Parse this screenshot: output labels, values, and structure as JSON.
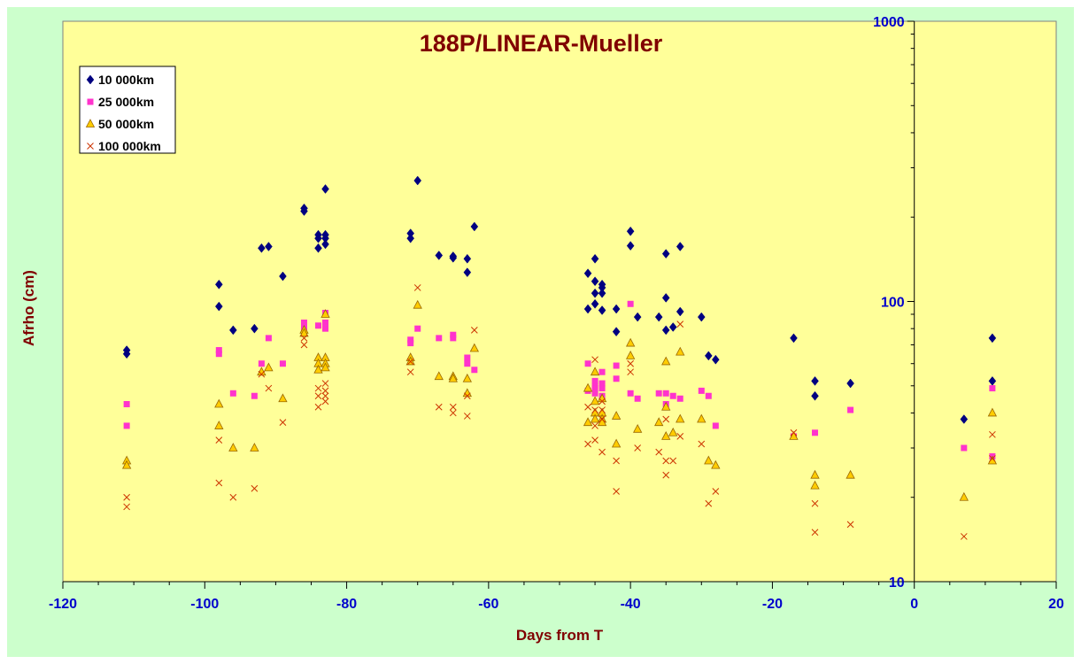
{
  "chart_data": {
    "type": "scatter",
    "title": "188P/LINEAR-Mueller",
    "xlabel": "Days from T",
    "ylabel": "Afrho (cm)",
    "xlim": [
      -120,
      20
    ],
    "ylim": [
      10,
      1000
    ],
    "y_scale": "log",
    "x_ticks": [
      -120,
      -100,
      -80,
      -60,
      -40,
      -20,
      0,
      20
    ],
    "y_ticks": [
      10,
      100,
      1000
    ],
    "legend_position": "top-left",
    "grid": false,
    "colors": {
      "plot_background": "#ffff99",
      "frame_background": "#ccffcc",
      "title": "#800000",
      "tick_labels": "#0000cc"
    },
    "series": [
      {
        "name": "10 000km",
        "marker": "diamond",
        "color": "#000080",
        "points": [
          [
            -111,
            67
          ],
          [
            -111,
            65
          ],
          [
            -98,
            115
          ],
          [
            -98,
            96
          ],
          [
            -96,
            79
          ],
          [
            -93,
            80
          ],
          [
            -92,
            155
          ],
          [
            -91,
            157
          ],
          [
            -89,
            123
          ],
          [
            -86,
            215
          ],
          [
            -86,
            210
          ],
          [
            -84,
            173
          ],
          [
            -84,
            168
          ],
          [
            -84,
            155
          ],
          [
            -83,
            252
          ],
          [
            -83,
            173
          ],
          [
            -83,
            168
          ],
          [
            -83,
            160
          ],
          [
            -71,
            175
          ],
          [
            -71,
            168
          ],
          [
            -70,
            270
          ],
          [
            -67,
            146
          ],
          [
            -65,
            145
          ],
          [
            -65,
            143
          ],
          [
            -63,
            142
          ],
          [
            -63,
            127
          ],
          [
            -62,
            185
          ],
          [
            -46,
            126
          ],
          [
            -46,
            94
          ],
          [
            -45,
            142
          ],
          [
            -45,
            118
          ],
          [
            -45,
            107
          ],
          [
            -45,
            98
          ],
          [
            -44,
            115
          ],
          [
            -44,
            112
          ],
          [
            -44,
            107
          ],
          [
            -44,
            93
          ],
          [
            -42,
            94
          ],
          [
            -42,
            78
          ],
          [
            -40,
            178
          ],
          [
            -40,
            158
          ],
          [
            -39,
            88
          ],
          [
            -36,
            88
          ],
          [
            -35,
            148
          ],
          [
            -35,
            103
          ],
          [
            -35,
            79
          ],
          [
            -34,
            81
          ],
          [
            -33,
            92
          ],
          [
            -33,
            157
          ],
          [
            -30,
            88
          ],
          [
            -29,
            64
          ],
          [
            -28,
            62
          ],
          [
            -17,
            74
          ],
          [
            -14,
            52
          ],
          [
            -14,
            46
          ],
          [
            -9,
            51
          ],
          [
            7,
            38
          ],
          [
            11,
            74
          ],
          [
            11,
            52
          ]
        ]
      },
      {
        "name": "25 000km",
        "marker": "square",
        "color": "#ff33cc",
        "points": [
          [
            -111,
            43
          ],
          [
            -111,
            36
          ],
          [
            -98,
            67
          ],
          [
            -98,
            65
          ],
          [
            -96,
            47
          ],
          [
            -93,
            46
          ],
          [
            -92,
            60
          ],
          [
            -91,
            74
          ],
          [
            -89,
            60
          ],
          [
            -86,
            84
          ],
          [
            -86,
            80
          ],
          [
            -84,
            82
          ],
          [
            -83,
            91
          ],
          [
            -83,
            84
          ],
          [
            -83,
            80
          ],
          [
            -71,
            73
          ],
          [
            -71,
            71
          ],
          [
            -70,
            80
          ],
          [
            -67,
            74
          ],
          [
            -65,
            76
          ],
          [
            -65,
            74
          ],
          [
            -63,
            63
          ],
          [
            -63,
            60
          ],
          [
            -62,
            57
          ],
          [
            -46,
            60
          ],
          [
            -46,
            48
          ],
          [
            -45,
            52
          ],
          [
            -45,
            50
          ],
          [
            -45,
            49
          ],
          [
            -45,
            47
          ],
          [
            -44,
            56
          ],
          [
            -44,
            51
          ],
          [
            -44,
            49
          ],
          [
            -44,
            46
          ],
          [
            -42,
            53
          ],
          [
            -42,
            59
          ],
          [
            -40,
            98
          ],
          [
            -40,
            47
          ],
          [
            -39,
            45
          ],
          [
            -36,
            47
          ],
          [
            -35,
            47
          ],
          [
            -35,
            43
          ],
          [
            -34,
            46
          ],
          [
            -33,
            45
          ],
          [
            -30,
            48
          ],
          [
            -29,
            46
          ],
          [
            -28,
            36
          ],
          [
            -17,
            33
          ],
          [
            -14,
            34
          ],
          [
            -9,
            41
          ],
          [
            7,
            30
          ],
          [
            11,
            49
          ],
          [
            11,
            28
          ]
        ]
      },
      {
        "name": "50 000km",
        "marker": "triangle",
        "color": "#ffcc00",
        "points": [
          [
            -111,
            27
          ],
          [
            -111,
            26
          ],
          [
            -98,
            43
          ],
          [
            -98,
            36
          ],
          [
            -96,
            30
          ],
          [
            -93,
            30
          ],
          [
            -92,
            56
          ],
          [
            -91,
            58
          ],
          [
            -89,
            45
          ],
          [
            -86,
            79
          ],
          [
            -86,
            77
          ],
          [
            -84,
            63
          ],
          [
            -84,
            60
          ],
          [
            -84,
            57
          ],
          [
            -83,
            90
          ],
          [
            -83,
            63
          ],
          [
            -83,
            60
          ],
          [
            -83,
            58
          ],
          [
            -71,
            63
          ],
          [
            -71,
            61
          ],
          [
            -70,
            97
          ],
          [
            -67,
            54
          ],
          [
            -65,
            54
          ],
          [
            -65,
            53
          ],
          [
            -63,
            53
          ],
          [
            -63,
            47
          ],
          [
            -62,
            68
          ],
          [
            -46,
            49
          ],
          [
            -46,
            37
          ],
          [
            -45,
            56
          ],
          [
            -45,
            44
          ],
          [
            -45,
            40
          ],
          [
            -45,
            38
          ],
          [
            -44,
            45
          ],
          [
            -44,
            40
          ],
          [
            -44,
            38
          ],
          [
            -44,
            37
          ],
          [
            -42,
            39
          ],
          [
            -42,
            31
          ],
          [
            -40,
            71
          ],
          [
            -40,
            64
          ],
          [
            -39,
            35
          ],
          [
            -36,
            37
          ],
          [
            -35,
            61
          ],
          [
            -35,
            42
          ],
          [
            -35,
            33
          ],
          [
            -34,
            34
          ],
          [
            -33,
            38
          ],
          [
            -33,
            66
          ],
          [
            -30,
            38
          ],
          [
            -29,
            27
          ],
          [
            -28,
            26
          ],
          [
            -17,
            33
          ],
          [
            -14,
            24
          ],
          [
            -14,
            22
          ],
          [
            -9,
            24
          ],
          [
            7,
            20
          ],
          [
            11,
            40
          ],
          [
            11,
            27
          ]
        ]
      },
      {
        "name": "100 000km",
        "marker": "x",
        "color": "#cc3300",
        "points": [
          [
            -111,
            20
          ],
          [
            -111,
            18.5
          ],
          [
            -98,
            32
          ],
          [
            -98,
            22.5
          ],
          [
            -96,
            20
          ],
          [
            -93,
            21.5
          ],
          [
            -92,
            55
          ],
          [
            -91,
            49
          ],
          [
            -89,
            37
          ],
          [
            -86,
            74
          ],
          [
            -86,
            70
          ],
          [
            -84,
            49
          ],
          [
            -84,
            46
          ],
          [
            -84,
            42
          ],
          [
            -83,
            51
          ],
          [
            -83,
            48
          ],
          [
            -83,
            46
          ],
          [
            -83,
            44
          ],
          [
            -71,
            61
          ],
          [
            -71,
            56
          ],
          [
            -70,
            112
          ],
          [
            -67,
            42
          ],
          [
            -65,
            42
          ],
          [
            -65,
            40
          ],
          [
            -63,
            46
          ],
          [
            -63,
            39
          ],
          [
            -62,
            79
          ],
          [
            -46,
            42
          ],
          [
            -46,
            31
          ],
          [
            -45,
            62
          ],
          [
            -45,
            41
          ],
          [
            -45,
            36
          ],
          [
            -45,
            32
          ],
          [
            -44,
            44
          ],
          [
            -44,
            41
          ],
          [
            -44,
            38
          ],
          [
            -44,
            29
          ],
          [
            -42,
            27
          ],
          [
            -42,
            21
          ],
          [
            -40,
            60
          ],
          [
            -40,
            56
          ],
          [
            -39,
            30
          ],
          [
            -36,
            29
          ],
          [
            -35,
            38
          ],
          [
            -35,
            27
          ],
          [
            -35,
            24
          ],
          [
            -34,
            27
          ],
          [
            -33,
            33
          ],
          [
            -33,
            83
          ],
          [
            -30,
            31
          ],
          [
            -29,
            19
          ],
          [
            -28,
            21
          ],
          [
            -17,
            34
          ],
          [
            -14,
            19
          ],
          [
            -14,
            15
          ],
          [
            -9,
            16
          ],
          [
            7,
            14.5
          ],
          [
            11,
            33.5
          ],
          [
            11,
            27.5
          ]
        ]
      }
    ]
  }
}
